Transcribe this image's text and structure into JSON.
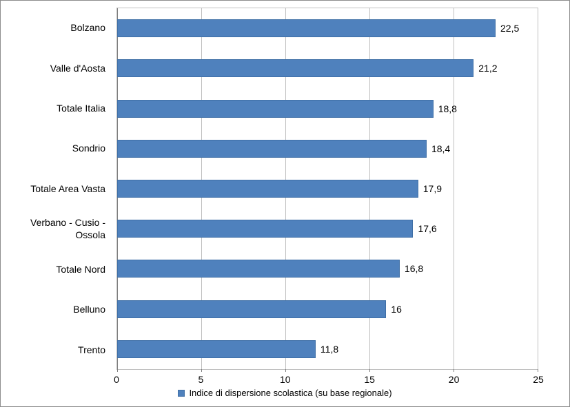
{
  "chart_data": {
    "type": "bar",
    "orientation": "horizontal",
    "title": "",
    "xlabel": "",
    "ylabel": "",
    "categories": [
      "Bolzano",
      "Valle d'Aosta",
      "Totale Italia",
      "Sondrio",
      "Totale Area Vasta",
      "Verbano - Cusio - Ossola",
      "Totale Nord",
      "Belluno",
      "Trento"
    ],
    "values": [
      22.5,
      21.2,
      18.8,
      18.4,
      17.9,
      17.6,
      16.8,
      16,
      11.8
    ],
    "value_labels": [
      "22,5",
      "21,2",
      "18,8",
      "18,4",
      "17,9",
      "17,6",
      "16,8",
      "16",
      "11,8"
    ],
    "xlim": [
      0,
      25
    ],
    "x_ticks": [
      0,
      5,
      10,
      15,
      20,
      25
    ],
    "grid": true,
    "bar_color": "#4f81bd",
    "legend": {
      "position": "bottom",
      "label": "Indice di dispersione scolastica (su base regionale)"
    }
  }
}
